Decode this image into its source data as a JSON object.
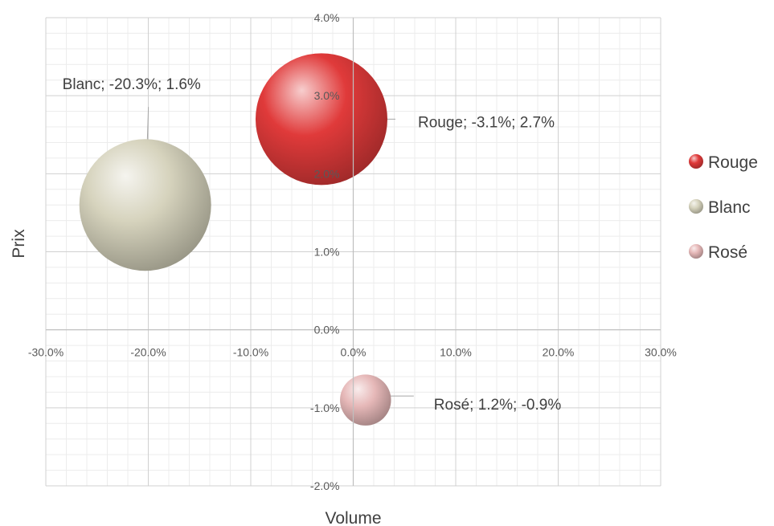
{
  "chart_data": {
    "type": "bubble",
    "xlabel": "Volume",
    "ylabel": "Prix",
    "xlim": [
      -0.3,
      0.3
    ],
    "ylim": [
      -0.02,
      0.04
    ],
    "x_major_step": 0.1,
    "y_major_step": 0.01,
    "x_tick_labels": [
      "-30.0%",
      "-20.0%",
      "-10.0%",
      "0.0%",
      "10.0%",
      "20.0%",
      "30.0%"
    ],
    "y_tick_labels": [
      "-2.0%",
      "-1.0%",
      "0.0%",
      "1.0%",
      "2.0%",
      "3.0%",
      "4.0%"
    ],
    "grid": true,
    "legend_position": "right",
    "series": [
      {
        "name": "Rouge",
        "x": -0.031,
        "y": 0.027,
        "size": 1.0,
        "color": "#e03a3a",
        "label": "Rouge; -3.1%; 2.7%"
      },
      {
        "name": "Blanc",
        "x": -0.203,
        "y": 0.016,
        "size": 1.0,
        "color": "#d6d3bd",
        "label": "Blanc; -20.3%; 1.6%"
      },
      {
        "name": "Rosé",
        "x": 0.012,
        "y": -0.009,
        "size": 0.15,
        "color": "#e6b8b8",
        "label": "Rosé; 1.2%; -0.9%"
      }
    ]
  }
}
